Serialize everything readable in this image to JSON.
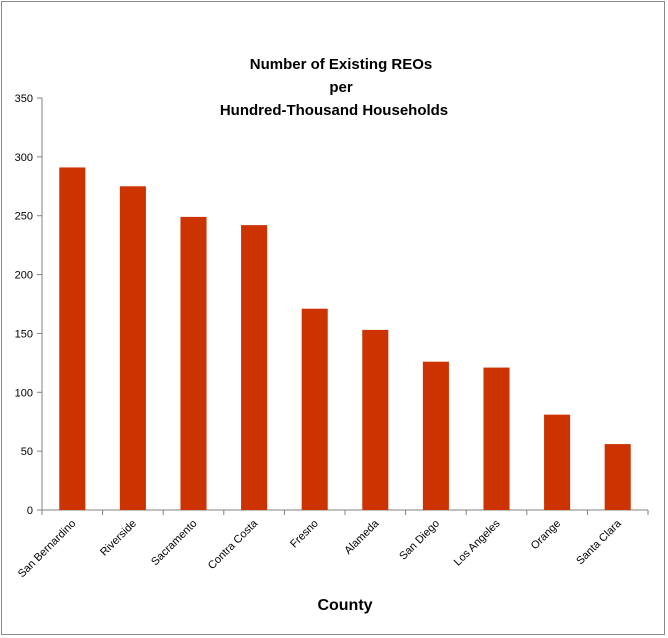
{
  "chart_data": {
    "type": "bar",
    "title_lines": [
      "Number of  Existing REOs",
      "per",
      "Hundred-Thousand Households"
    ],
    "xlabel": "County",
    "ylabel": "",
    "categories": [
      "San Bernardino",
      "Riverside",
      "Sacramento",
      "Contra Costa",
      "Fresno",
      "Alameda",
      "San Diego",
      "Los Angeles",
      "Orange",
      "Santa Clara"
    ],
    "values": [
      291,
      275,
      249,
      242,
      171,
      153,
      126,
      121,
      81,
      56
    ],
    "ylim": [
      0,
      350
    ],
    "yticks": [
      0,
      50,
      100,
      150,
      200,
      250,
      300,
      350
    ],
    "grid": false,
    "legend": "none",
    "bar_color": "#CC3300"
  }
}
